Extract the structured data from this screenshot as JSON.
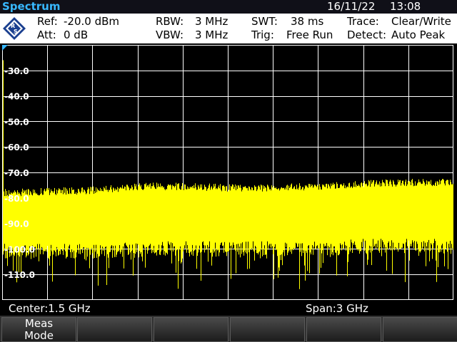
{
  "title": "Spectrum",
  "date": "16/11/22",
  "time": "13:08",
  "logo_text": "R&S",
  "settings": {
    "ref_label": "Ref:",
    "ref_value": "-20.0 dBm",
    "att_label": "Att:",
    "att_value": "0 dB",
    "rbw_label": "RBW:",
    "rbw_value": "3 MHz",
    "vbw_label": "VBW:",
    "vbw_value": "3 MHz",
    "swt_label": "SWT:",
    "swt_value": "38 ms",
    "trig_label": "Trig:",
    "trig_value": "Free Run",
    "trace_label": "Trace:",
    "trace_value": "Clear/Write",
    "detect_label": "Detect:",
    "detect_value": "Auto Peak"
  },
  "status": {
    "center": "Center:1.5 GHz",
    "span": "Span:3 GHz"
  },
  "softkeys": [
    {
      "line1": "Meas",
      "line2": "Mode"
    },
    {
      "line1": "",
      "line2": ""
    },
    {
      "line1": "",
      "line2": ""
    },
    {
      "line1": "",
      "line2": ""
    },
    {
      "line1": "",
      "line2": ""
    },
    {
      "line1": "",
      "line2": ""
    }
  ],
  "colors": {
    "title": "#38b8ff",
    "trace": "#ffff00",
    "grid": "#ffffff",
    "background": "#000000"
  },
  "chart_data": {
    "type": "line",
    "y_tick_labels": [
      "-30.0",
      "-40.0",
      "-50.0",
      "-60.0",
      "-70.0",
      "-80.0",
      "-90.0",
      "-100.0",
      "-110.0"
    ],
    "ylim": [
      -120,
      -20
    ],
    "xlim_ghz": [
      0,
      3
    ],
    "center_ghz": 1.5,
    "span_ghz": 3,
    "unit": "dBm",
    "grid": true,
    "series": [
      {
        "x": [
          0,
          0.3,
          0.6,
          0.9,
          1.2,
          1.5,
          1.8,
          2.1,
          2.4,
          2.7,
          3.0
        ],
        "peak": [
          -78,
          -77.5,
          -77,
          -75.5,
          -75.5,
          -76,
          -76,
          -75.5,
          -74.5,
          -74,
          -74
        ],
        "floor": [
          -101,
          -101,
          -101,
          -100,
          -100,
          -100,
          -100,
          -100,
          -99,
          -99,
          -99
        ]
      }
    ]
  }
}
